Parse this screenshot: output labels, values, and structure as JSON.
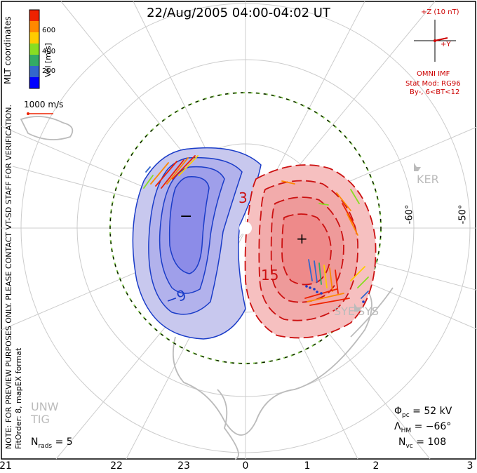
{
  "header": {
    "title": "22/Aug/2005 04:00-04:02 UT"
  },
  "notes": {
    "coords": "MLT coordinates",
    "preview": "NOTE: FOR PREVIEW PURPOSES ONLY. PLEASE CONTACT VT-SD STAFF FOR VERIFICATION.",
    "fit": "FitOrder: 8, mapEX format"
  },
  "legend": {
    "title": "Vel [m/s]",
    "ticks": [
      "600",
      "400",
      "200"
    ],
    "colors": [
      "#0000ff",
      "#3366cc",
      "#33aa66",
      "#88dd22",
      "#ffcc00",
      "#ff8800",
      "#ee2200"
    ],
    "scale_label": "1000 m/s"
  },
  "imf": {
    "z_label": "+Z (10 nT)",
    "y_label": "+Y",
    "source": "OMNI IMF",
    "model_line1": "Stat Mod: RG96",
    "model_line2": "By-, 6<BT<12"
  },
  "stats": {
    "phi_sym": "Φ",
    "phi_sub": "pc",
    "phi_val": "= 52 kV",
    "lam_sym": "Λ",
    "lam_sub": "HM",
    "lam_val": "= −66°",
    "nvc_sym": "N",
    "nvc_sub": "vc",
    "nvc_val": "= 108",
    "nrads_sym": "N",
    "nrads_sub": "rads",
    "nrads_val": "= 5"
  },
  "axes": {
    "mlt": [
      "21",
      "22",
      "23",
      "0",
      "1",
      "2",
      "3"
    ],
    "lat": [
      "-60°",
      "-50°"
    ]
  },
  "stations": [
    "KER",
    "SYE",
    "SYS",
    "UNW",
    "TIG"
  ],
  "contours": {
    "neg_label": "−9",
    "neg_label2": "3",
    "pos_label": "15",
    "minus": "−",
    "plus": "+"
  },
  "style": {
    "neg_fill": "#c8c8ee",
    "neg_fill_dark": "#8c8ce8",
    "neg_line": "#1a3cc8",
    "pos_fill": "#f6c0c0",
    "pos_fill_dark": "#ee8a8a",
    "pos_line": "#cc1111"
  }
}
